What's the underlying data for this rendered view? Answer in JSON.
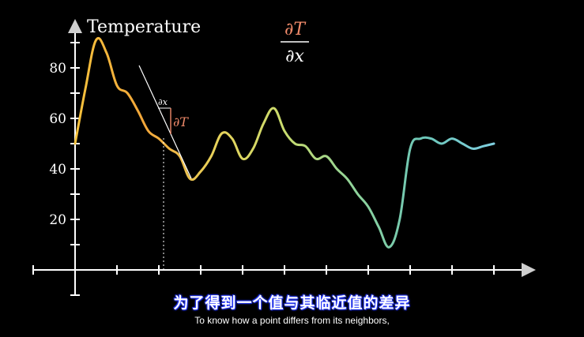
{
  "colors": {
    "background": "#000000",
    "axis": "#ffffff",
    "derivative_numerator": "#f08a6a",
    "tangent_line": "#ffffff",
    "gradient_stops": [
      "#f6c23c",
      "#f2a63a",
      "#e8d25a",
      "#c9dc6e",
      "#8fd39a",
      "#6cc6b8",
      "#7fcfe0"
    ]
  },
  "chart_data": {
    "type": "line",
    "ylabel": "Temperature",
    "yticks": [
      "20",
      "40",
      "60",
      "80"
    ],
    "ylim": [
      -10,
      95
    ],
    "xlim": [
      0,
      20
    ],
    "x_tick_count": 10,
    "grid": false,
    "legend": "none",
    "series": [
      {
        "x": [
          0,
          0.5,
          1,
          1.5,
          2,
          2.5,
          3,
          3.5,
          4,
          4.5,
          5,
          5.5,
          6,
          6.5,
          7,
          7.5,
          8,
          8.5,
          9,
          9.5,
          10,
          10.5,
          11,
          11.5,
          12,
          12.5,
          13,
          13.5,
          14,
          14.5,
          15,
          15.5,
          16,
          16.5,
          17,
          17.5,
          18,
          18.5,
          19,
          19.5,
          20
        ],
        "values": [
          50,
          72,
          91,
          86,
          73,
          70,
          63,
          55,
          52,
          48,
          45,
          36,
          39,
          45,
          54,
          52,
          44,
          48,
          58,
          64,
          55,
          50,
          49,
          44,
          45,
          40,
          36,
          30,
          25,
          17,
          9,
          20,
          48,
          52,
          52,
          50,
          52,
          50,
          48,
          49,
          50
        ]
      }
    ],
    "annotations": {
      "formula_numerator": "∂T",
      "formula_denominator": "∂x",
      "dx_label": "∂x",
      "dT_label": "∂T",
      "point_x": 4
    }
  },
  "subtitles": {
    "chinese": "为了得到一个值与其临近值的差异",
    "english": "To know how a point differs from its neighbors,"
  }
}
